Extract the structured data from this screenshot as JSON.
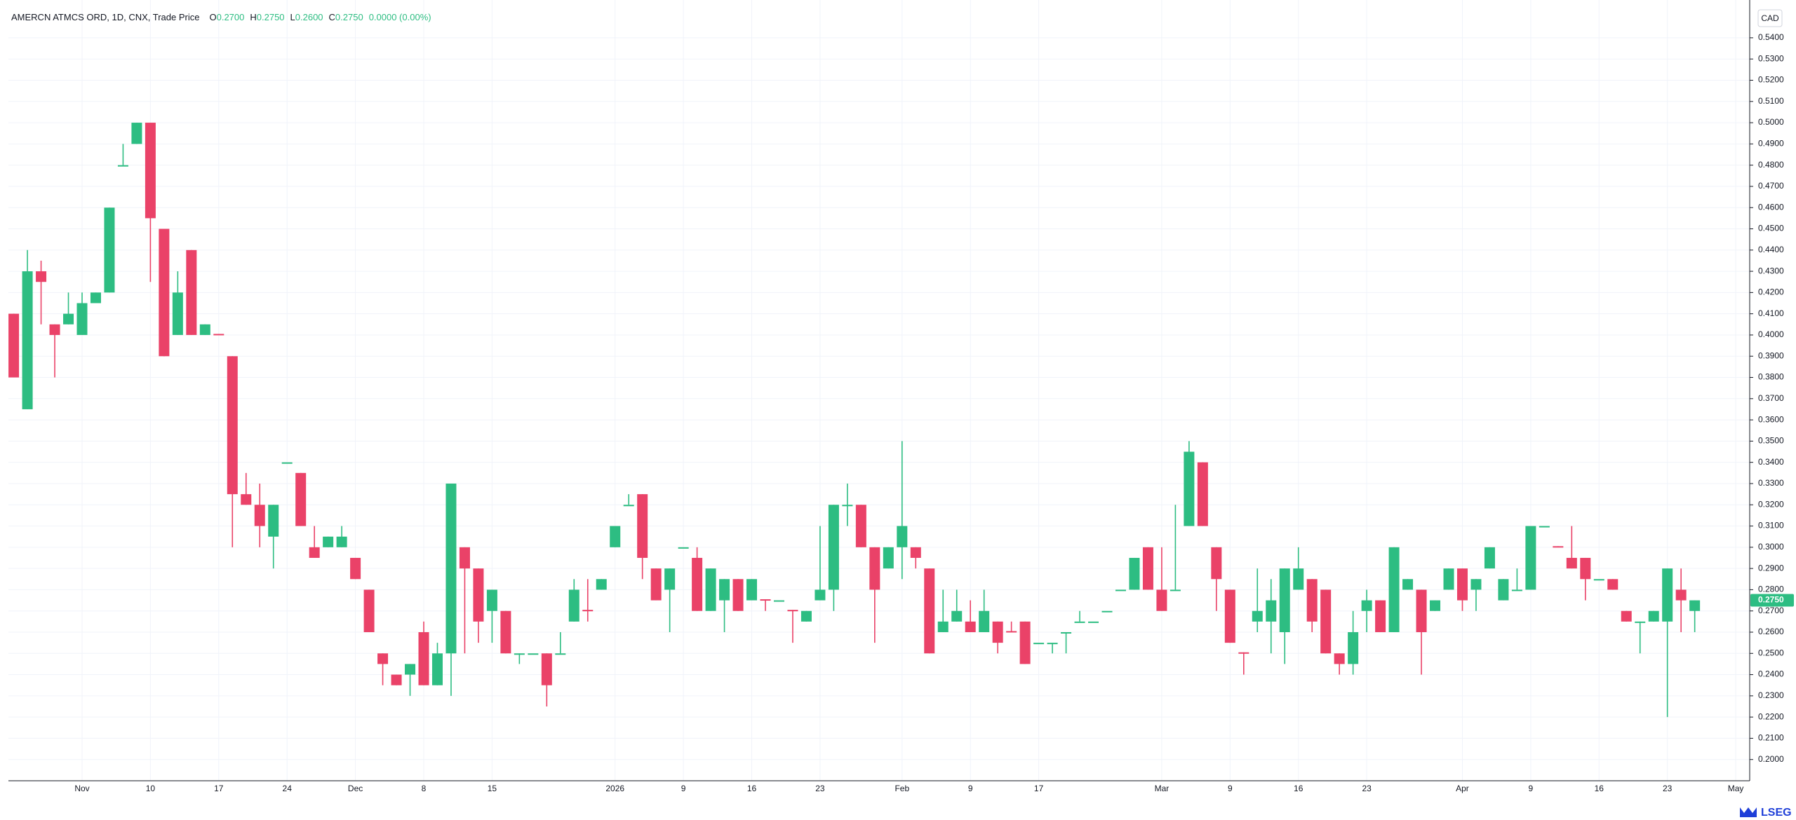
{
  "chart_data": {
    "type": "candlestick",
    "title": "AMERCN ATMCS ORD, 1D, CNX, Trade Price",
    "ohlc_legend": [
      {
        "key": "O",
        "value": "0.2700"
      },
      {
        "key": "H",
        "value": "0.2750"
      },
      {
        "key": "L",
        "value": "0.2600"
      },
      {
        "key": "C",
        "value": "0.2750"
      }
    ],
    "change": "0.0000 (0.00%)",
    "currency": "CAD",
    "up_color": "#2dbd82",
    "down_color": "#ea4268",
    "grid": true,
    "categories": [
      null,
      null,
      null,
      null,
      null,
      "Nov",
      null,
      null,
      null,
      null,
      "10",
      null,
      null,
      null,
      null,
      "17",
      null,
      null,
      null,
      null,
      "24",
      null,
      null,
      null,
      null,
      "Dec",
      null,
      null,
      null,
      null,
      "8",
      null,
      null,
      null,
      null,
      "15",
      null,
      null,
      null,
      null,
      null,
      null,
      null,
      null,
      "2026",
      null,
      null,
      null,
      null,
      "9",
      null,
      null,
      null,
      null,
      "16",
      null,
      null,
      null,
      null,
      "23",
      null,
      null,
      null,
      null,
      null,
      "Feb",
      null,
      null,
      null,
      null,
      "9",
      null,
      null,
      null,
      null,
      "17",
      null,
      null,
      null,
      null,
      null,
      null,
      null,
      null,
      "Mar",
      null,
      null,
      null,
      null,
      "9",
      null,
      null,
      null,
      null,
      "16",
      null,
      null,
      null,
      null,
      "23",
      null,
      null,
      null,
      null,
      null,
      null,
      "Apr",
      null,
      null,
      null,
      null,
      "9",
      null,
      null,
      null,
      null,
      "16",
      null,
      null,
      null,
      null,
      "23",
      null,
      null,
      null,
      null,
      "May"
    ],
    "open": [
      0.41,
      0.365,
      0.43,
      0.405,
      0.405,
      0.4,
      0.415,
      0.42,
      0.48,
      0.49,
      0.5,
      0.45,
      0.4,
      0.44,
      0.4,
      0.4005,
      0.39,
      0.325,
      0.32,
      0.305,
      0.34,
      0.335,
      0.3,
      0.3,
      0.3,
      0.295,
      0.28,
      0.25,
      0.24,
      0.24,
      0.26,
      0.235,
      0.25,
      0.3,
      0.29,
      0.27,
      0.27,
      0.25,
      0.25,
      0.25,
      0.25,
      0.265,
      0.2705,
      0.28,
      0.3,
      0.32,
      0.325,
      0.29,
      0.28,
      0.3,
      0.295,
      0.27,
      0.275,
      0.285,
      0.275,
      0.2755,
      0.275,
      0.2705,
      0.265,
      0.275,
      0.28,
      0.32,
      0.32,
      0.3,
      0.29,
      0.3,
      0.3,
      0.29,
      0.26,
      0.265,
      0.265,
      0.26,
      0.265,
      0.2605,
      0.265,
      0.255,
      0.255,
      0.26,
      0.265,
      0.265,
      0.27,
      0.28,
      0.28,
      0.3,
      0.28,
      0.28,
      0.31,
      0.34,
      0.3,
      0.28,
      0.2505,
      0.265,
      0.265,
      0.26,
      0.28,
      0.285,
      0.28,
      0.25,
      0.245,
      0.27,
      0.275,
      0.26,
      0.28,
      0.28,
      0.27,
      0.28,
      0.29,
      0.28,
      0.29,
      0.275,
      0.28,
      0.28,
      0.31,
      0.3005,
      0.295,
      0.295,
      0.285,
      0.285,
      0.27,
      0.265,
      0.265,
      0.265,
      0.28,
      0.27,
      null,
      null,
      null
    ],
    "high": [
      0.41,
      0.44,
      0.435,
      0.405,
      0.42,
      0.42,
      0.42,
      0.46,
      0.49,
      0.5,
      0.5,
      0.45,
      0.43,
      0.44,
      0.405,
      0.4005,
      0.39,
      0.335,
      0.33,
      0.32,
      0.34,
      0.335,
      0.31,
      0.305,
      0.31,
      0.295,
      0.28,
      0.25,
      0.24,
      0.245,
      0.265,
      0.255,
      0.33,
      0.3,
      0.29,
      0.28,
      0.27,
      0.25,
      0.25,
      0.25,
      0.26,
      0.285,
      0.285,
      0.285,
      0.31,
      0.325,
      0.325,
      0.29,
      0.29,
      0.3,
      0.3,
      0.29,
      0.285,
      0.285,
      0.285,
      0.2755,
      0.275,
      0.2705,
      0.27,
      0.31,
      0.32,
      0.33,
      0.32,
      0.3,
      0.3,
      0.35,
      0.3,
      0.29,
      0.28,
      0.28,
      0.275,
      0.28,
      0.265,
      0.265,
      0.265,
      0.255,
      0.255,
      0.26,
      0.27,
      0.265,
      0.27,
      0.28,
      0.295,
      0.3,
      0.3,
      0.32,
      0.35,
      0.34,
      0.3,
      0.28,
      0.2505,
      0.29,
      0.285,
      0.29,
      0.3,
      0.285,
      0.28,
      0.25,
      0.27,
      0.28,
      0.275,
      0.3,
      0.285,
      0.28,
      0.275,
      0.29,
      0.29,
      0.285,
      0.3,
      0.285,
      0.29,
      0.31,
      0.31,
      0.3005,
      0.31,
      0.295,
      0.285,
      0.285,
      0.27,
      0.265,
      0.27,
      0.29,
      0.29,
      0.275,
      null,
      null,
      null
    ],
    "low": [
      0.38,
      0.365,
      0.405,
      0.38,
      0.405,
      0.4,
      0.415,
      0.42,
      0.48,
      0.49,
      0.425,
      0.39,
      0.4,
      0.4,
      0.4,
      0.4,
      0.3,
      0.32,
      0.3,
      0.29,
      0.34,
      0.31,
      0.295,
      0.3,
      0.3,
      0.285,
      0.26,
      0.235,
      0.235,
      0.23,
      0.235,
      0.235,
      0.23,
      0.25,
      0.255,
      0.255,
      0.25,
      0.245,
      0.25,
      0.225,
      0.25,
      0.265,
      0.265,
      0.28,
      0.3,
      0.32,
      0.285,
      0.275,
      0.26,
      0.3,
      0.27,
      0.27,
      0.26,
      0.27,
      0.275,
      0.27,
      0.275,
      0.255,
      0.265,
      0.275,
      0.27,
      0.31,
      0.3,
      0.255,
      0.29,
      0.285,
      0.29,
      0.25,
      0.26,
      0.265,
      0.26,
      0.26,
      0.25,
      0.26,
      0.245,
      0.255,
      0.25,
      0.25,
      0.265,
      0.265,
      0.27,
      0.28,
      0.28,
      0.28,
      0.27,
      0.28,
      0.31,
      0.31,
      0.27,
      0.255,
      0.24,
      0.26,
      0.25,
      0.245,
      0.28,
      0.26,
      0.25,
      0.24,
      0.24,
      0.26,
      0.26,
      0.26,
      0.28,
      0.24,
      0.27,
      0.28,
      0.27,
      0.27,
      0.29,
      0.275,
      0.28,
      0.28,
      0.31,
      0.3,
      0.29,
      0.275,
      0.285,
      0.28,
      0.265,
      0.25,
      0.265,
      0.22,
      0.26,
      0.26,
      null,
      null,
      null
    ],
    "close": [
      0.38,
      0.43,
      0.425,
      0.4,
      0.41,
      0.415,
      0.42,
      0.46,
      0.48,
      0.5,
      0.455,
      0.39,
      0.42,
      0.4,
      0.405,
      0.4,
      0.325,
      0.32,
      0.31,
      0.32,
      0.34,
      0.31,
      0.295,
      0.305,
      0.305,
      0.285,
      0.26,
      0.245,
      0.235,
      0.245,
      0.235,
      0.25,
      0.33,
      0.29,
      0.265,
      0.28,
      0.25,
      0.25,
      0.25,
      0.235,
      0.25,
      0.28,
      0.27,
      0.285,
      0.31,
      0.32,
      0.295,
      0.275,
      0.29,
      0.3,
      0.27,
      0.29,
      0.285,
      0.27,
      0.285,
      0.275,
      0.275,
      0.27,
      0.27,
      0.28,
      0.32,
      0.32,
      0.3,
      0.28,
      0.3,
      0.31,
      0.295,
      0.25,
      0.265,
      0.27,
      0.26,
      0.27,
      0.255,
      0.26,
      0.245,
      0.255,
      0.255,
      0.26,
      0.265,
      0.265,
      0.27,
      0.28,
      0.295,
      0.28,
      0.27,
      0.28,
      0.345,
      0.31,
      0.285,
      0.255,
      0.25,
      0.27,
      0.275,
      0.29,
      0.29,
      0.265,
      0.25,
      0.245,
      0.26,
      0.275,
      0.26,
      0.3,
      0.285,
      0.26,
      0.275,
      0.29,
      0.275,
      0.285,
      0.3,
      0.285,
      0.28,
      0.31,
      0.31,
      0.3,
      0.29,
      0.285,
      0.285,
      0.28,
      0.265,
      0.265,
      0.27,
      0.29,
      0.275,
      0.275,
      null,
      null,
      null
    ],
    "ylim": [
      0.19,
      0.5578
    ],
    "yticks": [
      {
        "value": 0.54,
        "label": "0.5400"
      },
      {
        "value": 0.53,
        "label": "0.5300"
      },
      {
        "value": 0.52,
        "label": "0.5200"
      },
      {
        "value": 0.51,
        "label": "0.5100"
      },
      {
        "value": 0.5,
        "label": "0.5000"
      },
      {
        "value": 0.49,
        "label": "0.4900"
      },
      {
        "value": 0.48,
        "label": "0.4800"
      },
      {
        "value": 0.47,
        "label": "0.4700"
      },
      {
        "value": 0.46,
        "label": "0.4600"
      },
      {
        "value": 0.45,
        "label": "0.4500"
      },
      {
        "value": 0.44,
        "label": "0.4400"
      },
      {
        "value": 0.43,
        "label": "0.4300"
      },
      {
        "value": 0.42,
        "label": "0.4200"
      },
      {
        "value": 0.41,
        "label": "0.4100"
      },
      {
        "value": 0.4,
        "label": "0.4000"
      },
      {
        "value": 0.39,
        "label": "0.3900"
      },
      {
        "value": 0.38,
        "label": "0.3800"
      },
      {
        "value": 0.37,
        "label": "0.3700"
      },
      {
        "value": 0.36,
        "label": "0.3600"
      },
      {
        "value": 0.35,
        "label": "0.3500"
      },
      {
        "value": 0.34,
        "label": "0.3400"
      },
      {
        "value": 0.33,
        "label": "0.3300"
      },
      {
        "value": 0.32,
        "label": "0.3200"
      },
      {
        "value": 0.31,
        "label": "0.3100"
      },
      {
        "value": 0.3,
        "label": "0.3000"
      },
      {
        "value": 0.29,
        "label": "0.2900"
      },
      {
        "value": 0.28,
        "label": "0.2800"
      },
      {
        "value": 0.27,
        "label": "0.2700"
      },
      {
        "value": 0.26,
        "label": "0.2600"
      },
      {
        "value": 0.25,
        "label": "0.2500"
      },
      {
        "value": 0.24,
        "label": "0.2400"
      },
      {
        "value": 0.23,
        "label": "0.2300"
      },
      {
        "value": 0.22,
        "label": "0.2200"
      },
      {
        "value": 0.21,
        "label": "0.2100"
      },
      {
        "value": 0.2,
        "label": "0.2000"
      }
    ],
    "last_price": {
      "value": 0.275,
      "label": "0.2750"
    },
    "footer": "LSEG"
  }
}
